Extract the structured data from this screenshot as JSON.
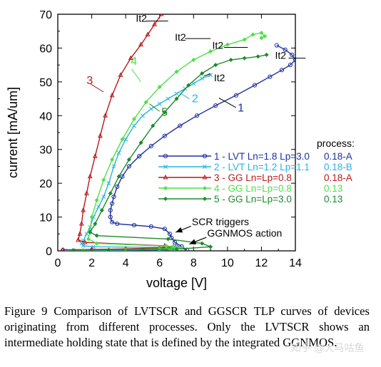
{
  "chart_data": {
    "type": "line",
    "xlabel": "voltage [V]",
    "ylabel": "current [mA/um]",
    "xlim": [
      0,
      14
    ],
    "ylim": [
      0,
      70
    ],
    "xticks": [
      0,
      2,
      4,
      6,
      8,
      10,
      12,
      14
    ],
    "yticks": [
      0,
      10,
      20,
      30,
      40,
      50,
      60,
      70
    ],
    "grid": false,
    "legend": {
      "position": "center-right",
      "title": "process:",
      "entries": [
        {
          "label": "1 - LVT Ln=1.8 Lp=3.0",
          "process": "0.18-A"
        },
        {
          "label": "2 - LVT Ln=1.2 Lp=1.1",
          "process": "0.18-B"
        },
        {
          "label": "3 - GG Ln=Lp=0.8",
          "process": "0.18-A"
        },
        {
          "label": "4 - GG Ln=Lp=0.8",
          "process": "0.13"
        },
        {
          "label": "5 - GG Ln=Lp=3.0",
          "process": "0.13"
        }
      ]
    },
    "series": [
      {
        "id": "1",
        "color": "#1c2fa0",
        "marker": "circle",
        "points": [
          [
            0.3,
            0.2
          ],
          [
            2,
            0.2
          ],
          [
            4,
            0.3
          ],
          [
            5.5,
            0.4
          ],
          [
            6.4,
            0.8
          ],
          [
            7.0,
            1.2
          ],
          [
            7.6,
            0.3
          ],
          [
            7.3,
            1.3
          ],
          [
            6.9,
            2.5
          ],
          [
            6.7,
            3.8
          ],
          [
            6.6,
            5.0
          ],
          [
            6.3,
            6.5
          ],
          [
            5.5,
            7.2
          ],
          [
            4.5,
            7.6
          ],
          [
            3.5,
            8.0
          ],
          [
            3.2,
            8.5
          ],
          [
            3.1,
            10
          ],
          [
            3.1,
            12
          ],
          [
            3.2,
            14
          ],
          [
            3.3,
            16
          ],
          [
            3.5,
            19
          ],
          [
            3.8,
            22
          ],
          [
            4.2,
            25
          ],
          [
            4.8,
            28
          ],
          [
            5.5,
            31
          ],
          [
            6.3,
            34
          ],
          [
            7.2,
            37
          ],
          [
            8.2,
            40
          ],
          [
            9.3,
            43
          ],
          [
            10.5,
            46
          ],
          [
            11.6,
            49
          ],
          [
            12.5,
            51.5
          ],
          [
            13.2,
            53.5
          ],
          [
            13.7,
            55
          ],
          [
            14.0,
            56.5
          ],
          [
            13.8,
            58
          ],
          [
            13.4,
            59.5
          ],
          [
            12.9,
            60.8
          ]
        ]
      },
      {
        "id": "2",
        "color": "#2ab3e0",
        "marker": "x",
        "points": [
          [
            0.4,
            0.1
          ],
          [
            2,
            0.1
          ],
          [
            4,
            0.2
          ],
          [
            6,
            0.3
          ],
          [
            6.8,
            0.5
          ],
          [
            6.6,
            1.0
          ],
          [
            2.1,
            1.2
          ],
          [
            1.5,
            1.5
          ],
          [
            1.4,
            2.2
          ],
          [
            1.5,
            3.0
          ],
          [
            1.7,
            5
          ],
          [
            1.9,
            7
          ],
          [
            2.1,
            10
          ],
          [
            2.4,
            13
          ],
          [
            2.7,
            16
          ],
          [
            3.0,
            20
          ],
          [
            3.3,
            25
          ],
          [
            3.6,
            29
          ],
          [
            4.0,
            33
          ],
          [
            4.5,
            37
          ],
          [
            5.0,
            40
          ],
          [
            5.5,
            42
          ],
          [
            6.0,
            43.5
          ],
          [
            6.5,
            45
          ],
          [
            7.0,
            46.5
          ],
          [
            7.5,
            48
          ],
          [
            8.0,
            49.5
          ],
          [
            8.5,
            51
          ],
          [
            9.0,
            52
          ]
        ]
      },
      {
        "id": "3",
        "color": "#b71a1a",
        "marker": "triangle",
        "points": [
          [
            0.3,
            0.3
          ],
          [
            2,
            0.4
          ],
          [
            4,
            0.6
          ],
          [
            6.0,
            0.9
          ],
          [
            6.8,
            1.2
          ],
          [
            6.3,
            1.5
          ],
          [
            1.6,
            2.5
          ],
          [
            1.2,
            3.2
          ],
          [
            1.3,
            5
          ],
          [
            1.4,
            8
          ],
          [
            1.5,
            12
          ],
          [
            1.7,
            17
          ],
          [
            1.9,
            22
          ],
          [
            2.2,
            28
          ],
          [
            2.5,
            34
          ],
          [
            2.8,
            40
          ],
          [
            3.2,
            46
          ],
          [
            3.7,
            52
          ],
          [
            4.3,
            57
          ],
          [
            4.9,
            61
          ],
          [
            5.3,
            64
          ],
          [
            5.7,
            67
          ],
          [
            6.1,
            70
          ]
        ]
      },
      {
        "id": "4",
        "color": "#4fe04a",
        "marker": "diamond",
        "points": [
          [
            1.5,
            0.2
          ],
          [
            4,
            0.4
          ],
          [
            6,
            0.6
          ],
          [
            7.3,
            0.9
          ],
          [
            6.8,
            1.2
          ],
          [
            6.4,
            1.4
          ],
          [
            2.3,
            2.2
          ],
          [
            1.8,
            3.5
          ],
          [
            1.9,
            6
          ],
          [
            2.0,
            10
          ],
          [
            2.3,
            15
          ],
          [
            2.7,
            21
          ],
          [
            3.2,
            27
          ],
          [
            3.8,
            33
          ],
          [
            4.5,
            39
          ],
          [
            5.2,
            44
          ],
          [
            6.0,
            48.5
          ],
          [
            7.0,
            53
          ],
          [
            8.0,
            56.5
          ],
          [
            9.0,
            59
          ],
          [
            10.0,
            61
          ],
          [
            11.0,
            62.5
          ],
          [
            11.5,
            64
          ],
          [
            12.0,
            64.5
          ],
          [
            12.2,
            63.5
          ],
          [
            12.0,
            63
          ]
        ]
      },
      {
        "id": "5",
        "color": "#1c8a2c",
        "marker": "diamond",
        "points": [
          [
            0.9,
            0.2
          ],
          [
            3,
            0.3
          ],
          [
            5,
            0.4
          ],
          [
            7,
            0.5
          ],
          [
            9.0,
            1.2
          ],
          [
            8.5,
            2.2
          ],
          [
            6.5,
            3.5
          ],
          [
            2.3,
            4.5
          ],
          [
            1.9,
            5.5
          ],
          [
            2.2,
            8
          ],
          [
            2.6,
            12
          ],
          [
            3.1,
            17
          ],
          [
            3.6,
            22
          ],
          [
            4.2,
            27
          ],
          [
            4.9,
            32
          ],
          [
            5.6,
            37
          ],
          [
            6.3,
            41
          ],
          [
            7.0,
            45
          ],
          [
            7.7,
            49
          ],
          [
            8.5,
            52.5
          ],
          [
            9.3,
            55
          ],
          [
            10.2,
            56.5
          ],
          [
            11.0,
            57
          ],
          [
            11.8,
            57.5
          ],
          [
            12.3,
            58
          ]
        ]
      }
    ],
    "annotations": [
      {
        "text": "1",
        "color": "#1c2fa0",
        "x": 10.6,
        "y": 41.2
      },
      {
        "text": "2",
        "color": "#2ab3e0",
        "x": 7.9,
        "y": 44
      },
      {
        "text": "3",
        "color": "#b71a1a",
        "x": 1.7,
        "y": 49.3
      },
      {
        "text": "4",
        "color": "#4fe04a",
        "x": 4.3,
        "y": 55
      },
      {
        "text": "5",
        "color": "#1c8a2c",
        "x": 6.1,
        "y": 40
      },
      {
        "text": "It2",
        "color": "#000000",
        "x": 4.6,
        "y": 67.8
      },
      {
        "text": "It2",
        "color": "#000000",
        "x": 6.9,
        "y": 62.2
      },
      {
        "text": "It2",
        "color": "#000000",
        "x": 9.1,
        "y": 59.8
      },
      {
        "text": "It2",
        "color": "#000000",
        "x": 9.2,
        "y": 50.2
      },
      {
        "text": "It2",
        "color": "#000000",
        "x": 12.8,
        "y": 56.8
      },
      {
        "text": "SCR triggers",
        "color": "#000000",
        "x": 7.9,
        "y": 7.6
      },
      {
        "text": "GGNMOS action",
        "color": "#000000",
        "x": 8.8,
        "y": 4.2
      }
    ]
  },
  "caption": "Figure 9 Comparison of LVTSCR and GGSCR TLP curves of devices originating from different processes. Only the LVTSCR shows an intermediate holding state that is defined by the integrated GGNMOS.",
  "watermark": "知乎 @大马咕鱼"
}
